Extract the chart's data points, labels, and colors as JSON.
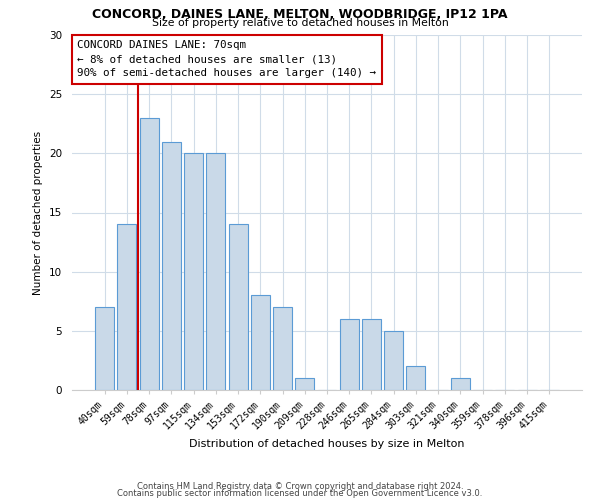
{
  "title": "CONCORD, DAINES LANE, MELTON, WOODBRIDGE, IP12 1PA",
  "subtitle": "Size of property relative to detached houses in Melton",
  "xlabel": "Distribution of detached houses by size in Melton",
  "ylabel": "Number of detached properties",
  "bar_labels": [
    "40sqm",
    "59sqm",
    "78sqm",
    "97sqm",
    "115sqm",
    "134sqm",
    "153sqm",
    "172sqm",
    "190sqm",
    "209sqm",
    "228sqm",
    "246sqm",
    "265sqm",
    "284sqm",
    "303sqm",
    "321sqm",
    "340sqm",
    "359sqm",
    "378sqm",
    "396sqm",
    "415sqm"
  ],
  "bar_values": [
    7,
    14,
    23,
    21,
    20,
    20,
    14,
    8,
    7,
    1,
    0,
    6,
    6,
    5,
    2,
    0,
    1,
    0,
    0,
    0,
    0
  ],
  "bar_color": "#c9d9e8",
  "bar_edge_color": "#5b9bd5",
  "marker_line_color": "#cc0000",
  "annotation_line1": "CONCORD DAINES LANE: 70sqm",
  "annotation_line2": "← 8% of detached houses are smaller (13)",
  "annotation_line3": "90% of semi-detached houses are larger (140) →",
  "annotation_box_edge_color": "#cc0000",
  "annotation_box_face_color": "#ffffff",
  "ylim": [
    0,
    30
  ],
  "yticks": [
    0,
    5,
    10,
    15,
    20,
    25,
    30
  ],
  "footer_line1": "Contains HM Land Registry data © Crown copyright and database right 2024.",
  "footer_line2": "Contains public sector information licensed under the Open Government Licence v3.0.",
  "background_color": "#ffffff",
  "grid_color": "#d0dce8"
}
